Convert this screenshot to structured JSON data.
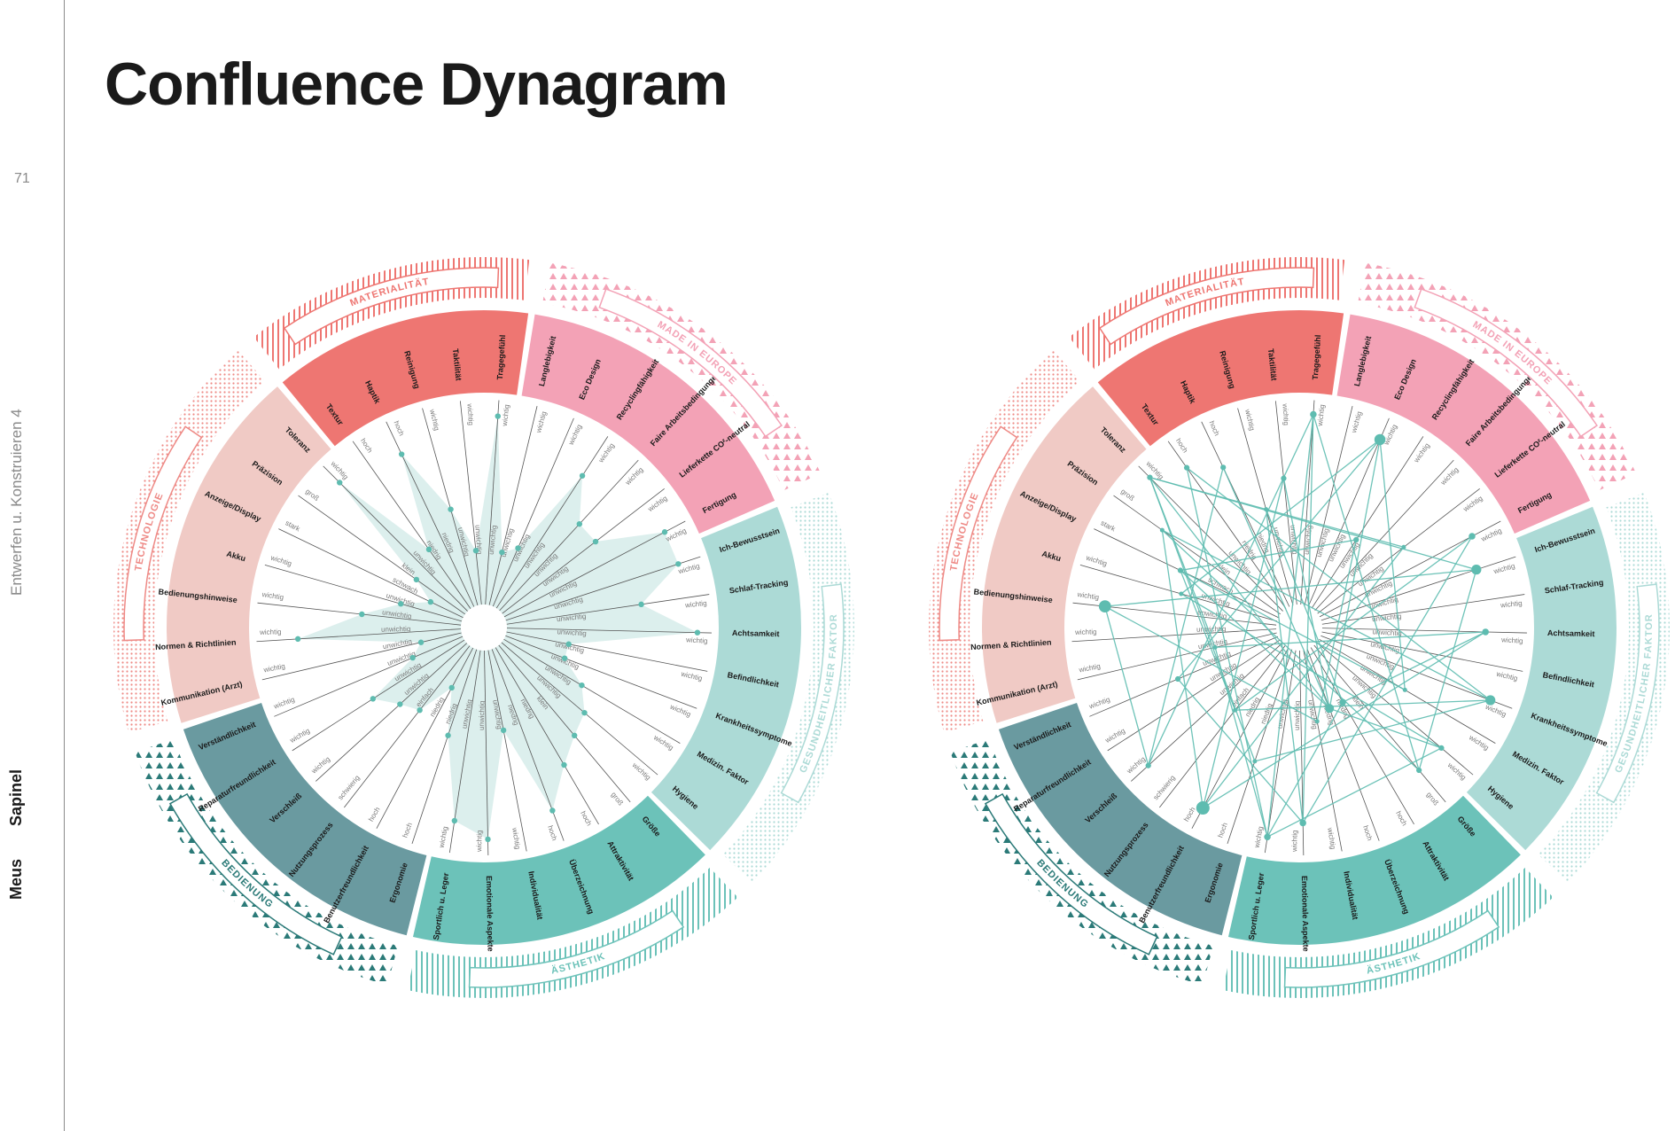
{
  "page": {
    "title": "Confluence Dynagram",
    "page_number": "71",
    "course": "Entwerfen u. Konstruieren 4",
    "project": "Sapinel",
    "author": "Meus"
  },
  "colors": {
    "materialitaet": "#ee7672",
    "made_in_europe": "#f3a2b6",
    "gesundheit": "#acdad6",
    "aesthetik": "#6cc2b9",
    "bedienung": "#6a9aa0",
    "technologie": "#f0cac5",
    "accent": "#5ebcb0",
    "radar_fill": "#d6ecea"
  },
  "categories": [
    {
      "label": "MATERIALITÄT",
      "color": "#ee7672",
      "pattern": "stripes-v",
      "pattern_color": "#ee7672",
      "light": false,
      "criteria": [
        "Textur",
        "Haptik",
        "Reinigung",
        "Taktilität",
        "Tragegefühl"
      ]
    },
    {
      "label": "MADE IN EUROPE",
      "color": "#f3a2b6",
      "pattern": "triangles",
      "pattern_color": "#f3a2b6",
      "light": false,
      "criteria": [
        "Langlebigkeit",
        "Eco Design",
        "Recyclingfähigkeit",
        "Faire Arbeitsbedingungen",
        "Lieferkette CO²-neutral",
        "Fertigung"
      ]
    },
    {
      "label": "GESUNDHEITLICHER FAKTOR",
      "color": "#acdad6",
      "pattern": "dots",
      "pattern_color": "#acdad6",
      "light": true,
      "criteria": [
        "Ich-Bewusstsein",
        "Schlaf-Tracking",
        "Achtsamkeit",
        "Befindlichkeit",
        "Krankheitssymptome",
        "Medizin. Faktor",
        "Hygiene"
      ]
    },
    {
      "label": "ÄSTHETIK",
      "color": "#6cc2b9",
      "pattern": "stripes-v",
      "pattern_color": "#6cc2b9",
      "light": false,
      "criteria": [
        "Größe",
        "Attraktivität",
        "Überzeichnung",
        "Individualität",
        "Emotionale Aspekte",
        "Sportlich u. Leger"
      ]
    },
    {
      "label": "BEDIENUNG",
      "color": "#6a9aa0",
      "pattern": "triangles",
      "pattern_color": "#2b7a78",
      "light": false,
      "criteria": [
        "Ergonomie",
        "Benutzerfreundlichkeit",
        "Nutzungsprozess",
        "Verschleiß",
        "Reparaturfreundlichkeit",
        "Verständlichkeit"
      ]
    },
    {
      "label": "TECHNOLOGIE",
      "color": "#f0cac5",
      "pattern": "dots",
      "pattern_color": "#ee8a86",
      "light": true,
      "criteria": [
        "Kommunikation (Arzt)",
        "Normen & Richtlinien",
        "Bedienungshinweise",
        "Akku",
        "Anzeige/Display",
        "Präzision",
        "Toleranz"
      ]
    }
  ],
  "scales": [
    [
      "hoch",
      "niedrig"
    ],
    [
      "hoch",
      "niedrig"
    ],
    [
      "wichtig",
      "unwichtig"
    ],
    [
      "wichtig",
      "unwichtig"
    ],
    [
      "wichtig",
      "unwichtig"
    ],
    [
      "wichtig",
      "unwichtig"
    ],
    [
      "wichtig",
      "unwichtig"
    ],
    [
      "wichtig",
      "unwichtig"
    ],
    [
      "wichtig",
      "unwichtig"
    ],
    [
      "wichtig",
      "unwichtig"
    ],
    [
      "wichtig",
      "unwichtig"
    ],
    [
      "wichtig",
      "unwichtig"
    ],
    [
      "wichtig",
      "unwichtig"
    ],
    [
      "wichtig",
      "unwichtig"
    ],
    [
      "wichtig",
      "unwichtig"
    ],
    [
      "wichtig",
      "unwichtig"
    ],
    [
      "wichtig",
      "unwichtig"
    ],
    [
      "wichtig",
      "unwichtig"
    ],
    [
      "groß",
      "klein"
    ],
    [
      "hoch",
      "niedrig"
    ],
    [
      "hoch",
      "niedrig"
    ],
    [
      "wichtig",
      "unwichtig"
    ],
    [
      "wichtig",
      "unwichtig"
    ],
    [
      "wichtig",
      "unwichtig"
    ],
    [
      "hoch",
      "niedrig"
    ],
    [
      "hoch",
      "niedrig"
    ],
    [
      "schwierig",
      "einfach"
    ],
    [
      "wichtig",
      "unwichtig"
    ],
    [
      "wichtig",
      "unwichtig"
    ],
    [
      "wichtig",
      "unwichtig"
    ],
    [
      "wichtig",
      "unwichtig"
    ],
    [
      "wichtig",
      "unwichtig"
    ],
    [
      "wichtig",
      "unwichtig"
    ],
    [
      "wichtig",
      "unwichtig"
    ],
    [
      "stark",
      "schwach"
    ],
    [
      "groß",
      "klein"
    ],
    [
      "wichtig",
      "unwichtig"
    ]
  ],
  "charts": [
    {
      "name": "radar",
      "values": [
        0.35,
        0.88,
        0.5,
        0.25,
        0.99,
        0.25,
        0.3,
        0.82,
        0.6,
        0.6,
        0.95,
        0.95,
        0.7,
        1.0,
        0.3,
        0.3,
        0.45,
        0.55,
        0.6,
        0.7,
        0.9,
        0.4,
        0.99,
        0.9,
        0.45,
        0.2,
        0.4,
        0.45,
        0.55,
        0.25,
        0.18,
        0.85,
        0.5,
        0.3,
        0.15,
        0.28,
        0.95
      ]
    },
    {
      "name": "connections",
      "nodes": [
        {
          "i": 0,
          "v": 0.9,
          "s": 5
        },
        {
          "i": 1,
          "v": 0.8,
          "s": 5
        },
        {
          "i": 2,
          "v": 0.5,
          "s": 4
        },
        {
          "i": 3,
          "v": 0.65,
          "s": 5
        },
        {
          "i": 4,
          "v": 1.0,
          "s": 6
        },
        {
          "i": 6,
          "v": 0.95,
          "s": 10
        },
        {
          "i": 7,
          "v": 0.4,
          "s": 5
        },
        {
          "i": 9,
          "v": 0.55,
          "s": 4
        },
        {
          "i": 10,
          "v": 0.9,
          "s": 6
        },
        {
          "i": 11,
          "v": 0.85,
          "s": 9
        },
        {
          "i": 13,
          "v": 0.85,
          "s": 6
        },
        {
          "i": 15,
          "v": 0.95,
          "s": 9
        },
        {
          "i": 16,
          "v": 0.5,
          "s": 4
        },
        {
          "i": 17,
          "v": 0.85,
          "s": 5
        },
        {
          "i": 18,
          "v": 0.85,
          "s": 5
        },
        {
          "i": 19,
          "v": 0.3,
          "s": 6
        },
        {
          "i": 20,
          "v": 0.3,
          "s": 8
        },
        {
          "i": 21,
          "v": 0.35,
          "s": 4
        },
        {
          "i": 22,
          "v": 0.9,
          "s": 6
        },
        {
          "i": 23,
          "v": 0.99,
          "s": 6
        },
        {
          "i": 24,
          "v": 0.6,
          "s": 4
        },
        {
          "i": 25,
          "v": 0.95,
          "s": 12
        },
        {
          "i": 26,
          "v": 0.4,
          "s": 4
        },
        {
          "i": 27,
          "v": 0.95,
          "s": 5
        },
        {
          "i": 29,
          "v": 0.55,
          "s": 5
        },
        {
          "i": 30,
          "v": 0.3,
          "s": 4
        },
        {
          "i": 32,
          "v": 0.9,
          "s": 11
        },
        {
          "i": 33,
          "v": 0.5,
          "s": 4
        },
        {
          "i": 34,
          "v": 0.55,
          "s": 5
        },
        {
          "i": 35,
          "v": 0.75,
          "s": 4
        },
        {
          "i": 36,
          "v": 0.99,
          "s": 5
        }
      ],
      "links": [
        [
          0,
          15
        ],
        [
          0,
          23
        ],
        [
          1,
          20
        ],
        [
          2,
          19
        ],
        [
          3,
          25
        ],
        [
          3,
          20
        ],
        [
          4,
          22
        ],
        [
          4,
          23
        ],
        [
          4,
          18
        ],
        [
          4,
          27
        ],
        [
          6,
          20
        ],
        [
          6,
          33
        ],
        [
          6,
          29
        ],
        [
          7,
          21
        ],
        [
          9,
          25
        ],
        [
          10,
          26
        ],
        [
          10,
          22
        ],
        [
          11,
          32
        ],
        [
          11,
          36
        ],
        [
          13,
          25
        ],
        [
          13,
          30
        ],
        [
          15,
          24
        ],
        [
          15,
          26
        ],
        [
          15,
          35
        ],
        [
          16,
          34
        ],
        [
          17,
          23
        ],
        [
          18,
          35
        ],
        [
          19,
          23
        ],
        [
          20,
          36
        ],
        [
          20,
          34
        ],
        [
          22,
          29
        ],
        [
          24,
          36
        ],
        [
          25,
          35
        ],
        [
          26,
          34
        ],
        [
          27,
          32
        ],
        [
          30,
          36
        ],
        [
          33,
          17
        ],
        [
          9,
          36
        ],
        [
          6,
          16
        ],
        [
          2,
          22
        ],
        [
          1,
          27
        ],
        [
          11,
          18
        ],
        [
          13,
          19
        ],
        [
          7,
          34
        ],
        [
          17,
          20
        ],
        [
          21,
          32
        ],
        [
          23,
          30
        ]
      ]
    }
  ]
}
